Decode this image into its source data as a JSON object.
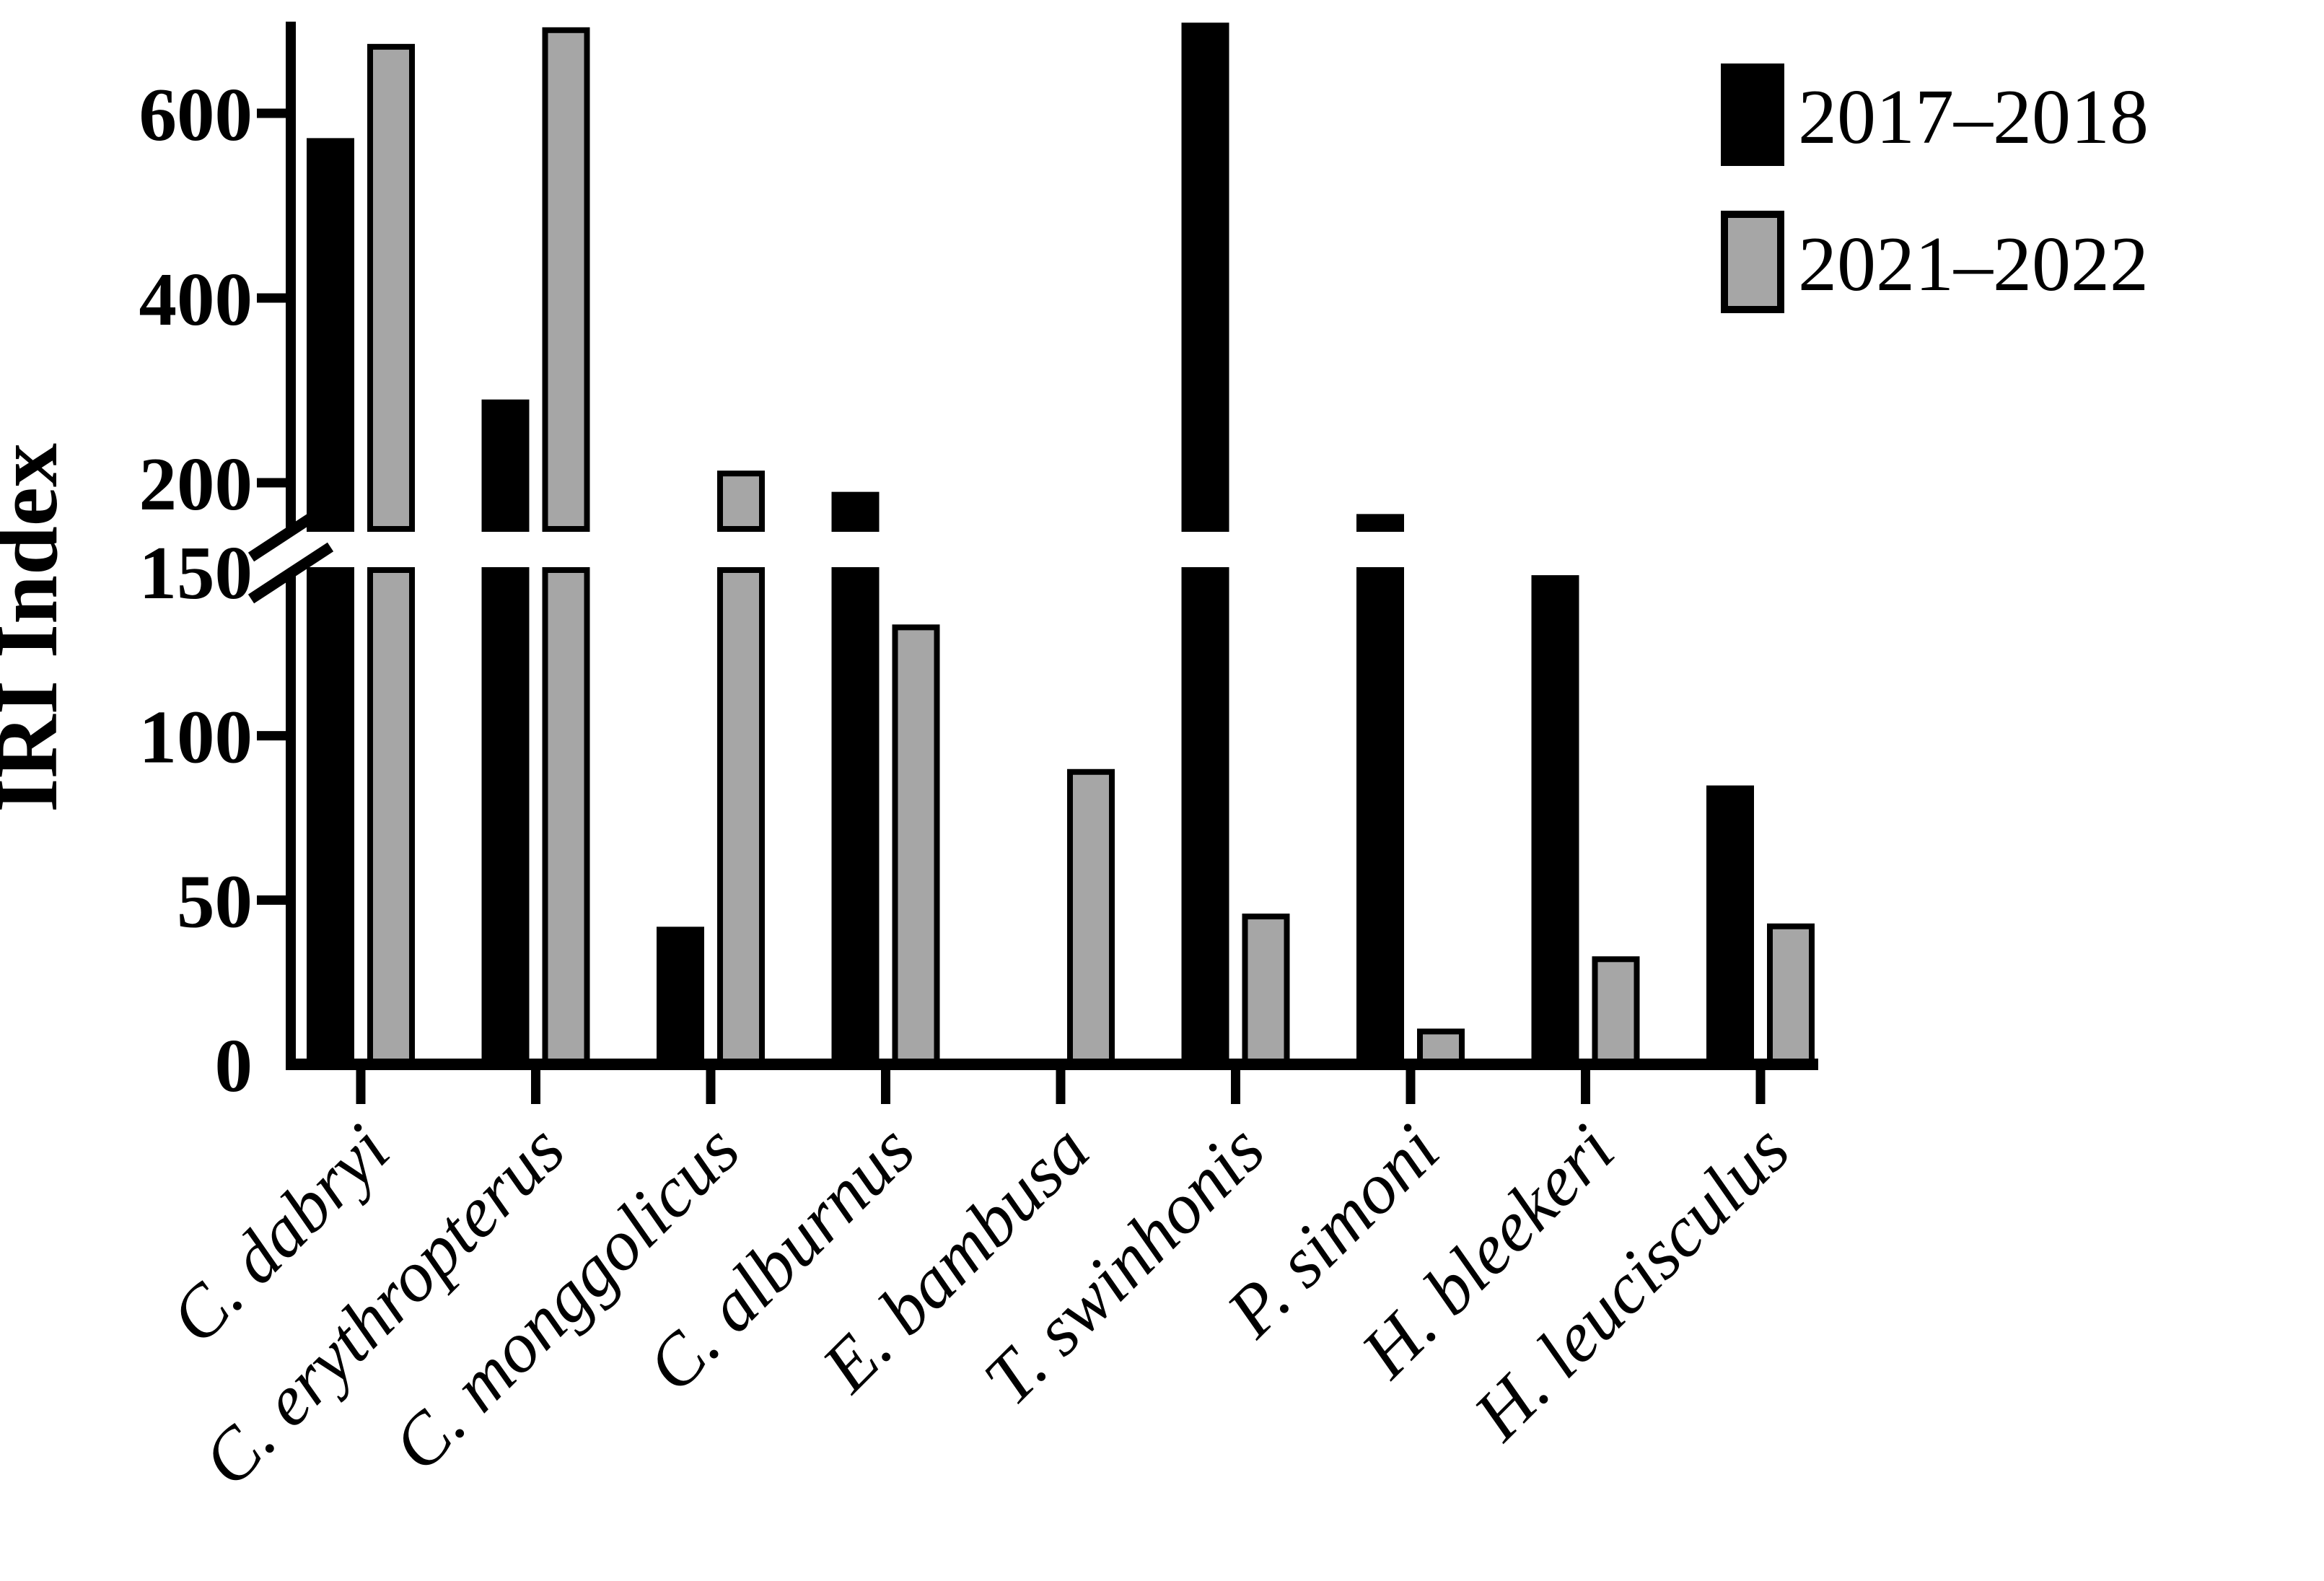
{
  "chart_data": {
    "type": "bar",
    "title": "",
    "ylabel": "IRI Index",
    "xlabel": "",
    "grid": false,
    "legend_position": "top-right",
    "categories": [
      "C. dabryi",
      "C. erythropterus",
      "C. monggolicus",
      "C. alburnus",
      "E. bambusa",
      "T. swinhonis",
      "P. simoni",
      "H. bleekeri",
      "H. leucisculus"
    ],
    "series": [
      {
        "name": "2017–2018",
        "color": "#000000",
        "values": [
          570,
          287,
          41,
          187,
          0,
          695,
          163,
          148,
          84
        ]
      },
      {
        "name": "2021–2022",
        "color": "#a6a6a6",
        "values": [
          672,
          690,
          210,
          133,
          89,
          45,
          10,
          32,
          42
        ]
      }
    ],
    "axis_break": {
      "lower_range": [
        0,
        150
      ],
      "upper_range": [
        150,
        700
      ],
      "break_marker": "double-slash"
    },
    "y_ticks": [
      {
        "label": "0",
        "value": 0,
        "mark": false
      },
      {
        "label": "50",
        "value": 50,
        "mark": true
      },
      {
        "label": "100",
        "value": 100,
        "mark": true
      },
      {
        "label": "150",
        "value": 150,
        "mark": false
      },
      {
        "label": "200",
        "value": 200,
        "mark": true
      },
      {
        "label": "400",
        "value": 400,
        "mark": true
      },
      {
        "label": "600",
        "value": 600,
        "mark": true
      }
    ],
    "colors": {
      "bar_border": "#000000",
      "axis": "#000000",
      "background": "#ffffff"
    }
  }
}
